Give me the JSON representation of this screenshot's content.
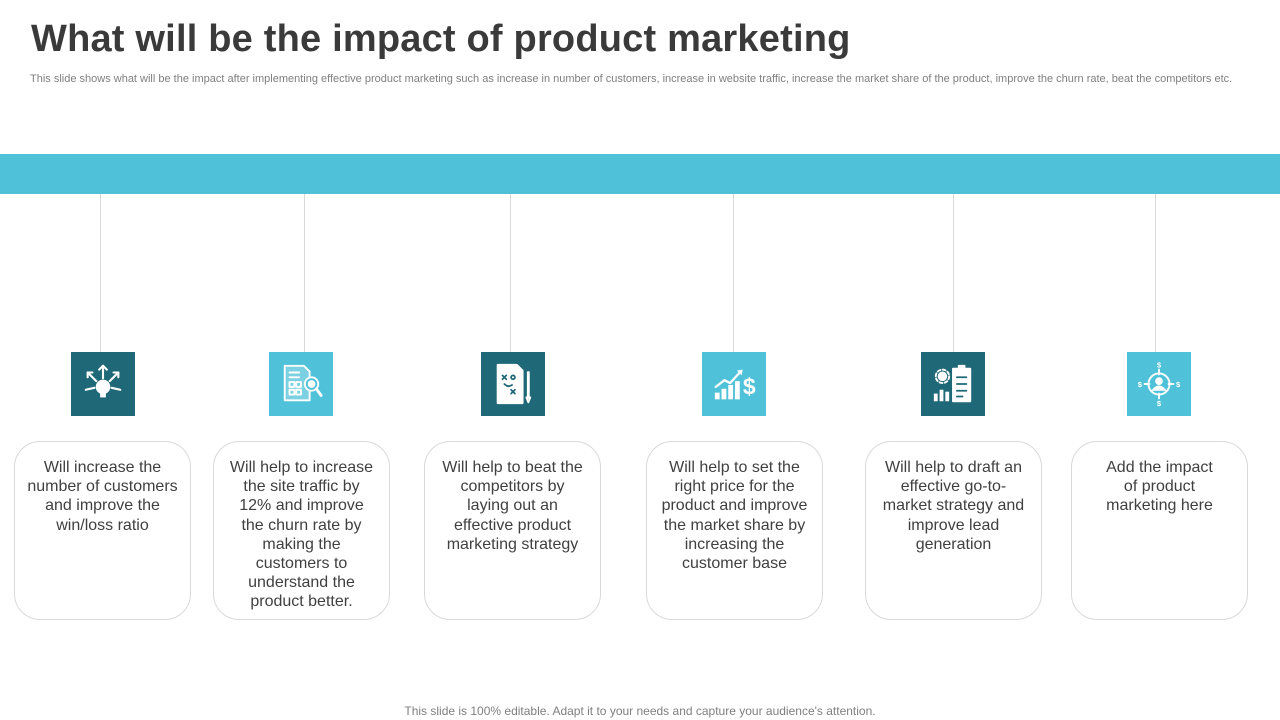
{
  "slide": {
    "title": "What will be the impact of product marketing",
    "subtitle": "This slide shows what will be the impact after implementing effective product marketing such as increase in number of customers, increase in website traffic, increase the market share of the product, improve the churn rate, beat the competitors etc.",
    "footer": "This slide is 100% editable. Adapt it to your needs and capture your audience's attention."
  },
  "colors": {
    "band": "#4fc1d9",
    "icon_dark": "#1f6878",
    "icon_light": "#4fc1d9",
    "title_text": "#3a3a3a"
  },
  "impacts": [
    {
      "icon": "lightbulb-ideas-icon",
      "text": "Will increase the number of customers and improve the win/loss ratio"
    },
    {
      "icon": "document-analysis-icon",
      "text": "Will help to increase the site traffic by 12% and improve the churn rate by making the customers to understand the product better."
    },
    {
      "icon": "strategy-plan-icon",
      "text": "Will help to beat the competitors by laying out an effective product marketing strategy"
    },
    {
      "icon": "growth-dollar-icon",
      "text": "Will help to set the right price for the product and improve the market share by increasing the customer base"
    },
    {
      "icon": "strategy-dashboard-icon",
      "text": "Will help to draft an effective go-to-market strategy and improve lead generation"
    },
    {
      "icon": "customer-target-icon",
      "text": "Add the impact of product marketing here"
    }
  ]
}
